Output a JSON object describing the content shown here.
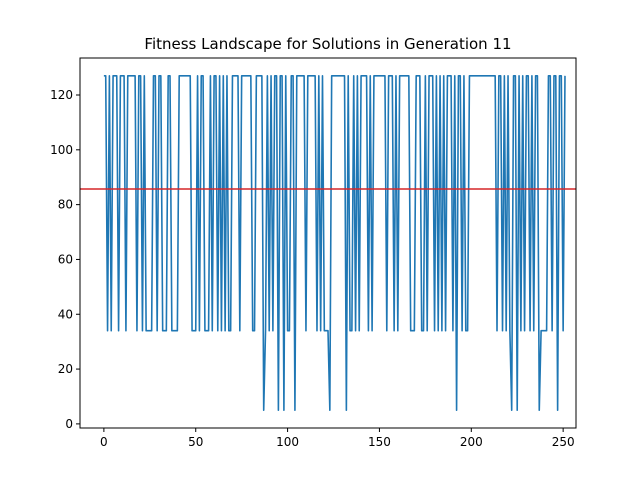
{
  "chart_data": {
    "type": "line",
    "title": "Fitness Landscape for Solutions in Generation 11",
    "xlabel": "",
    "ylabel": "",
    "xlim": [
      -13,
      257
    ],
    "ylim": [
      -1.5,
      133.5
    ],
    "xticks": [
      0,
      50,
      100,
      150,
      200,
      250
    ],
    "yticks": [
      0,
      20,
      40,
      60,
      80,
      100,
      120
    ],
    "grid": false,
    "colors": {
      "series": "#1f77b4",
      "threshold": "#d62728"
    },
    "threshold_line": {
      "y": 85.7,
      "orientation": "horizontal"
    },
    "series": [
      {
        "values": [
          127,
          127,
          34,
          127,
          34,
          127,
          127,
          127,
          34,
          127,
          127,
          127,
          34,
          127,
          127,
          127,
          127,
          127,
          34,
          127,
          127,
          34,
          127,
          34,
          34,
          34,
          34,
          127,
          127,
          34,
          127,
          127,
          34,
          34,
          34,
          127,
          127,
          34,
          34,
          34,
          34,
          127,
          127,
          127,
          127,
          127,
          127,
          127,
          34,
          34,
          34,
          127,
          34,
          127,
          127,
          34,
          34,
          34,
          127,
          34,
          127,
          127,
          34,
          127,
          34,
          127,
          34,
          127,
          34,
          34,
          127,
          127,
          127,
          127,
          34,
          127,
          127,
          127,
          127,
          127,
          127,
          34,
          34,
          127,
          127,
          127,
          127,
          5,
          34,
          127,
          34,
          127,
          34,
          127,
          127,
          5,
          127,
          127,
          5,
          127,
          34,
          34,
          127,
          127,
          5,
          127,
          127,
          127,
          127,
          127,
          34,
          127,
          127,
          127,
          127,
          127,
          34,
          127,
          34,
          127,
          34,
          34,
          34,
          5,
          127,
          127,
          127,
          127,
          127,
          127,
          127,
          127,
          5,
          127,
          34,
          34,
          127,
          34,
          127,
          34,
          127,
          127,
          127,
          127,
          34,
          127,
          34,
          127,
          127,
          127,
          127,
          127,
          127,
          127,
          34,
          127,
          127,
          127,
          34,
          127,
          34,
          127,
          127,
          127,
          127,
          127,
          127,
          34,
          34,
          34,
          127,
          127,
          127,
          34,
          34,
          127,
          34,
          127,
          127,
          127,
          34,
          127,
          34,
          127,
          34,
          127,
          34,
          127,
          127,
          127,
          34,
          127,
          5,
          127,
          127,
          34,
          127,
          34,
          34,
          127,
          127,
          127,
          127,
          127,
          127,
          127,
          127,
          127,
          127,
          127,
          127,
          127,
          127,
          127,
          34,
          127,
          127,
          34,
          127,
          34,
          127,
          34,
          5,
          127,
          127,
          5,
          127,
          34,
          127,
          34,
          127,
          127,
          34,
          127,
          34,
          127,
          127,
          5,
          34,
          34,
          34,
          34,
          127,
          127,
          34,
          127,
          127,
          5,
          127,
          127,
          34,
          127
        ]
      }
    ]
  }
}
